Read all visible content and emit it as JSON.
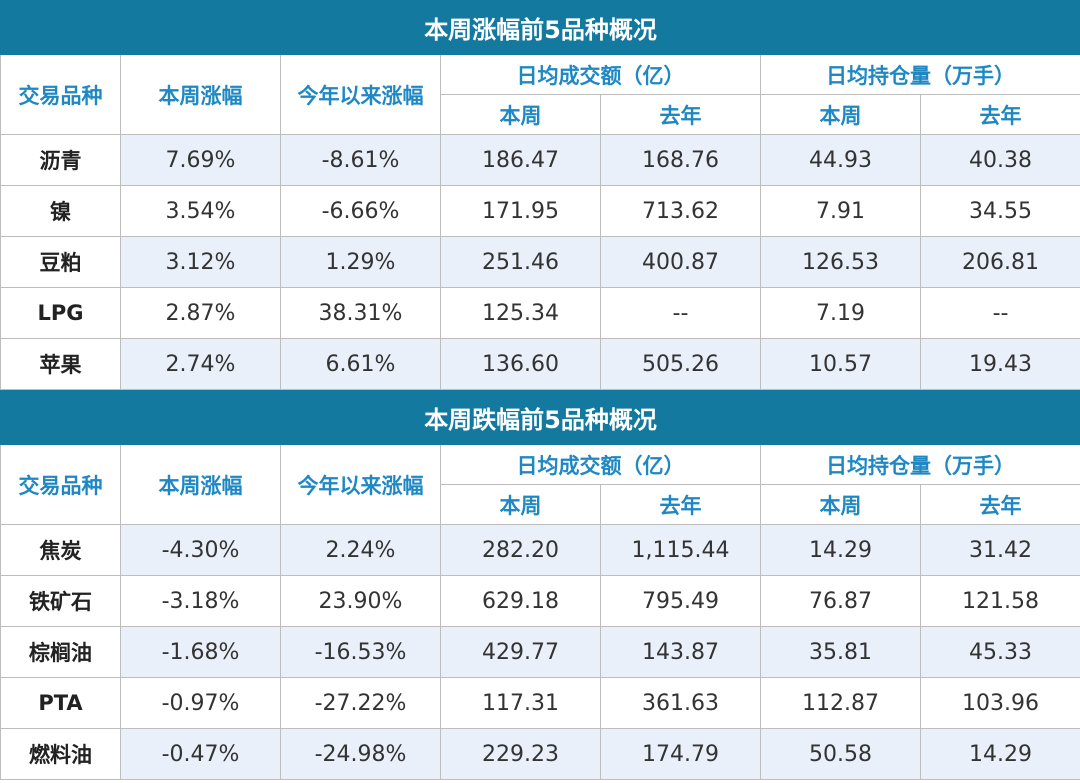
{
  "sections": [
    {
      "title": "本周涨幅前5品种概况",
      "headers": {
        "variety": "交易品种",
        "weekly_change": "本周涨幅",
        "ytd_change": "今年以来涨幅",
        "avg_turnover": "日均成交额（亿）",
        "avg_open_interest": "日均持仓量（万手）",
        "this_week": "本周",
        "last_year": "去年"
      },
      "rows": [
        {
          "name": "沥青",
          "weekly": "7.69%",
          "ytd": "-8.61%",
          "turnover_week": "186.47",
          "turnover_last_year": "168.76",
          "oi_week": "44.93",
          "oi_last_year": "40.38"
        },
        {
          "name": "镍",
          "weekly": "3.54%",
          "ytd": "-6.66%",
          "turnover_week": "171.95",
          "turnover_last_year": "713.62",
          "oi_week": "7.91",
          "oi_last_year": "34.55"
        },
        {
          "name": "豆粕",
          "weekly": "3.12%",
          "ytd": "1.29%",
          "turnover_week": "251.46",
          "turnover_last_year": "400.87",
          "oi_week": "126.53",
          "oi_last_year": "206.81"
        },
        {
          "name": "LPG",
          "weekly": "2.87%",
          "ytd": "38.31%",
          "turnover_week": "125.34",
          "turnover_last_year": "--",
          "oi_week": "7.19",
          "oi_last_year": "--"
        },
        {
          "name": "苹果",
          "weekly": "2.74%",
          "ytd": "6.61%",
          "turnover_week": "136.60",
          "turnover_last_year": "505.26",
          "oi_week": "10.57",
          "oi_last_year": "19.43"
        }
      ]
    },
    {
      "title": "本周跌幅前5品种概况",
      "headers": {
        "variety": "交易品种",
        "weekly_change": "本周涨幅",
        "ytd_change": "今年以来涨幅",
        "avg_turnover": "日均成交额（亿）",
        "avg_open_interest": "日均持仓量（万手）",
        "this_week": "本周",
        "last_year": "去年"
      },
      "rows": [
        {
          "name": "焦炭",
          "weekly": "-4.30%",
          "ytd": "2.24%",
          "turnover_week": "282.20",
          "turnover_last_year": "1,115.44",
          "oi_week": "14.29",
          "oi_last_year": "31.42"
        },
        {
          "name": "铁矿石",
          "weekly": "-3.18%",
          "ytd": "23.90%",
          "turnover_week": "629.18",
          "turnover_last_year": "795.49",
          "oi_week": "76.87",
          "oi_last_year": "121.58"
        },
        {
          "name": "棕榈油",
          "weekly": "-1.68%",
          "ytd": "-16.53%",
          "turnover_week": "429.77",
          "turnover_last_year": "143.87",
          "oi_week": "35.81",
          "oi_last_year": "45.33"
        },
        {
          "name": "PTA",
          "weekly": "-0.97%",
          "ytd": "-27.22%",
          "turnover_week": "117.31",
          "turnover_last_year": "361.63",
          "oi_week": "112.87",
          "oi_last_year": "103.96"
        },
        {
          "name": "燃料油",
          "weekly": "-0.47%",
          "ytd": "-24.98%",
          "turnover_week": "229.23",
          "turnover_last_year": "174.79",
          "oi_week": "50.58",
          "oi_last_year": "14.29"
        }
      ]
    }
  ]
}
